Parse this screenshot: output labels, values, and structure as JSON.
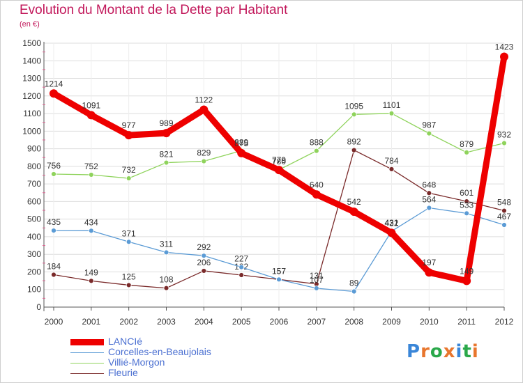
{
  "title": "Evolution du Montant de la Dette par Habitant",
  "subtitle": "(en €)",
  "logo_text": "Proxiti",
  "logo_colors": [
    "#3a86d8",
    "#e8762d",
    "#2aa84a",
    "#e8762d",
    "#3a86d8",
    "#2aa84a",
    "#e8762d"
  ],
  "chart_data": {
    "type": "line",
    "x": [
      "2000",
      "2001",
      "2002",
      "2003",
      "2004",
      "2005",
      "2006",
      "2007",
      "2008",
      "2009",
      "2010",
      "2011",
      "2012"
    ],
    "ylim": [
      0,
      1500
    ],
    "yticks": [
      0,
      100,
      200,
      300,
      400,
      500,
      600,
      700,
      800,
      900,
      1000,
      1100,
      1200,
      1300,
      1400,
      1500
    ],
    "grid": true,
    "legend_position": "bottom-left",
    "series": [
      {
        "name": "Fleurie",
        "color": "#7a2a2a",
        "values": [
          184,
          149,
          125,
          108,
          206,
          182,
          157,
          131,
          892,
          784,
          648,
          601,
          548
        ],
        "labels": [
          "184",
          "149",
          "125",
          "108",
          "206",
          "182",
          "157",
          "131",
          "892",
          "784",
          "648",
          "601",
          "548"
        ]
      },
      {
        "name": "Corcelles-en-Beaujolais",
        "color": "#5b9bd5",
        "values": [
          435,
          434,
          371,
          311,
          292,
          227,
          157,
          107,
          89,
          431,
          564,
          533,
          467
        ],
        "labels": [
          "435",
          "434",
          "371",
          "311",
          "292",
          "227",
          "157",
          "107",
          "89",
          "431",
          "564",
          "533",
          "467"
        ]
      },
      {
        "name": "Villié-Morgon",
        "color": "#8fd35c",
        "values": [
          756,
          752,
          732,
          821,
          829,
          889,
          780,
          888,
          1095,
          1101,
          987,
          879,
          932
        ],
        "labels": [
          "756",
          "752",
          "732",
          "821",
          "829",
          "889",
          "780",
          "888",
          "1095",
          "1101",
          "987",
          "879",
          "932"
        ]
      },
      {
        "name": "LANCIé",
        "color": "#ee0000",
        "values": [
          1214,
          1091,
          977,
          989,
          1122,
          875,
          779,
          640,
          542,
          422,
          197,
          149,
          1423
        ],
        "labels": [
          "1214",
          "1091",
          "977",
          "989",
          "1122",
          "875",
          "779",
          "640",
          "542",
          "422",
          "197",
          "149",
          "1423"
        ]
      }
    ]
  }
}
